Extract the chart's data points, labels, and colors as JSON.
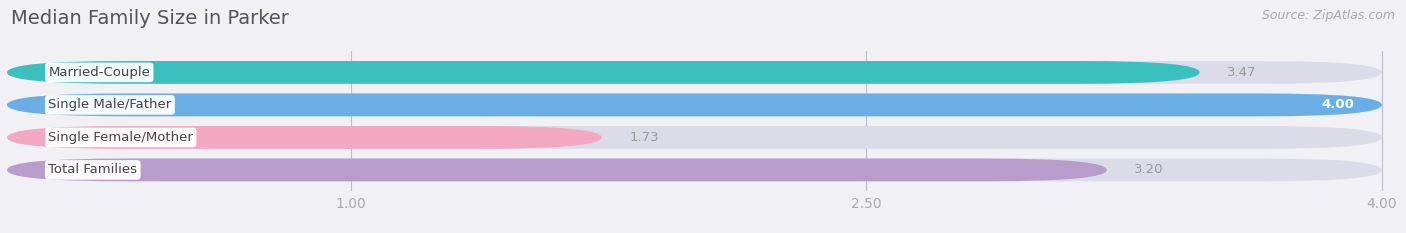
{
  "title": "Median Family Size in Parker",
  "source": "Source: ZipAtlas.com",
  "categories": [
    "Married-Couple",
    "Single Male/Father",
    "Single Female/Mother",
    "Total Families"
  ],
  "values": [
    3.47,
    4.0,
    1.73,
    3.2
  ],
  "bar_colors": [
    "#3bbfbf",
    "#6aaee8",
    "#f4a7c0",
    "#b89dcc"
  ],
  "xlim_min": 0,
  "xlim_max": 4.0,
  "xticks": [
    1.0,
    2.5,
    4.0
  ],
  "xtick_labels": [
    "1.00",
    "2.50",
    "4.00"
  ],
  "background_color": "#f0f0f5",
  "bar_bg_color": "#dcdce8",
  "title_fontsize": 14,
  "source_fontsize": 9,
  "label_fontsize": 9.5,
  "value_fontsize": 9.5,
  "tick_fontsize": 10,
  "bar_height": 0.7,
  "value_inside_color": "#ffffff",
  "value_outside_color": "#999999",
  "value_inside_threshold": 3.5
}
